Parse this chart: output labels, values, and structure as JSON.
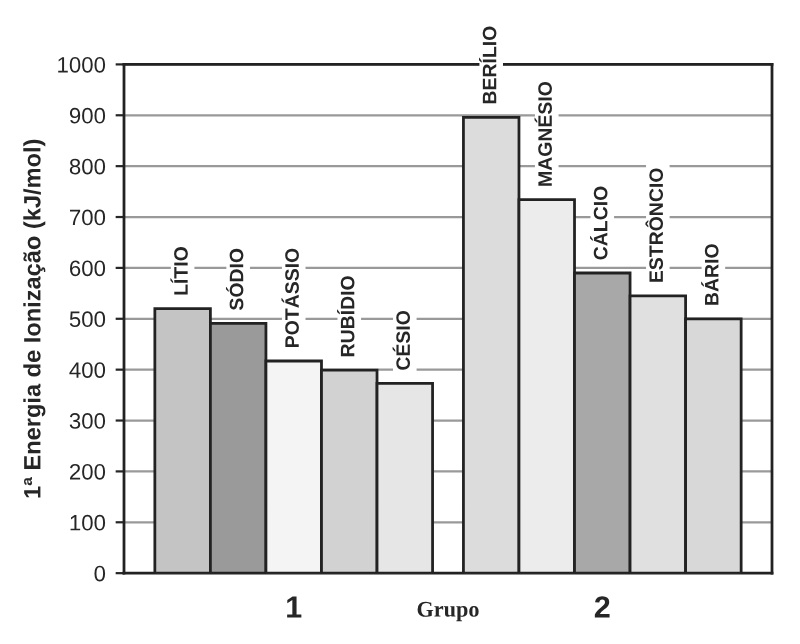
{
  "chart_data": {
    "type": "bar",
    "xlabel": "Grupo",
    "ylabel": "1ª Energia de Ionização (kJ/mol)",
    "categories": [
      "1",
      "2"
    ],
    "series": [
      {
        "name": "LÍTIO",
        "color": "#c4c4c4",
        "values": [
          520,
          null
        ]
      },
      {
        "name": "SÓDIO",
        "color": "#9a9a9a",
        "values": [
          491,
          null
        ]
      },
      {
        "name": "POTÁSSIO",
        "color": "#f4f4f4",
        "values": [
          417,
          null
        ]
      },
      {
        "name": "RUBÍDIO",
        "color": "#d2d2d2",
        "values": [
          399,
          null
        ]
      },
      {
        "name": "CÉSIO",
        "color": "#e6e6e6",
        "values": [
          373,
          null
        ]
      },
      {
        "name": "BERÍLIO",
        "color": "#dcdcdc",
        "values": [
          null,
          896
        ]
      },
      {
        "name": "MAGNÉSIO",
        "color": "#ececec",
        "values": [
          null,
          734
        ]
      },
      {
        "name": "CÁLCIO",
        "color": "#a8a8a8",
        "values": [
          null,
          590
        ]
      },
      {
        "name": "ESTRÔNCIO",
        "color": "#e0e0e0",
        "values": [
          null,
          545
        ]
      },
      {
        "name": "BÁRIO",
        "color": "#d8d8d8",
        "values": [
          null,
          500
        ]
      }
    ],
    "ylim": [
      0,
      1000
    ],
    "yticks": [
      0,
      100,
      200,
      300,
      400,
      500,
      600,
      700,
      800,
      900,
      1000
    ],
    "grid": "y",
    "legend": false
  }
}
